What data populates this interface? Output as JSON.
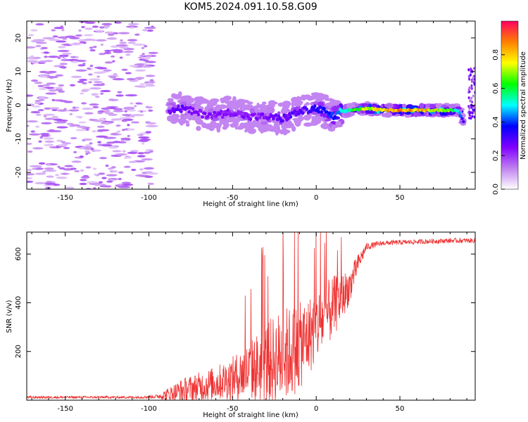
{
  "title": "KOM5.2024.091.10.58.G09",
  "chart_data": [
    {
      "type": "heatmap",
      "xlabel": "Height of straight line (km)",
      "ylabel": "Frequency (Hz)",
      "xlim": [
        -173,
        95
      ],
      "ylim": [
        -25,
        25
      ],
      "x_ticks": [
        -150,
        -100,
        -50,
        0,
        50
      ],
      "x_tick_labels": [
        "-150",
        "-100",
        "-50",
        "0",
        "50"
      ],
      "y_ticks": [
        20,
        10,
        0,
        -10,
        -20
      ],
      "y_tick_labels": [
        "20",
        "10",
        "0",
        "-10",
        "-20"
      ],
      "colorbar": {
        "label": "Normalized spectral amplitude",
        "range": [
          0,
          1
        ],
        "ticks": [
          0.0,
          0.2,
          0.4,
          0.6,
          0.8
        ],
        "tick_labels": [
          "0.0",
          "0.2",
          "0.4",
          "0.6",
          "0.8"
        ],
        "colormap": [
          "#ffffff",
          "#c080f0",
          "#8000ff",
          "#0000ff",
          "#00ffff",
          "#00ff00",
          "#ffff00",
          "#ff8000",
          "#ff0060"
        ]
      },
      "ridge": {
        "x": [
          -88,
          -80,
          -70,
          -60,
          -50,
          -40,
          -30,
          -20,
          -10,
          0,
          5,
          10,
          15,
          20,
          30,
          40,
          50,
          60,
          70,
          80,
          85,
          88
        ],
        "freq": [
          -1.5,
          -1.0,
          -2.5,
          -3.0,
          -2.0,
          -3.5,
          -3.5,
          -4.0,
          -2.0,
          -1.0,
          -2.0,
          -3.5,
          -2.0,
          -1.5,
          -1.0,
          -1.5,
          -1.5,
          -1.5,
          -1.5,
          -1.5,
          -1.5,
          -5.0
        ],
        "amplitude": [
          0.25,
          0.3,
          0.25,
          0.25,
          0.25,
          0.25,
          0.25,
          0.3,
          0.3,
          0.35,
          0.4,
          0.4,
          0.5,
          0.6,
          0.75,
          0.85,
          0.9,
          0.85,
          0.8,
          0.7,
          0.5,
          0.3
        ]
      },
      "noise_region_x": [
        -173,
        -97
      ]
    },
    {
      "type": "line",
      "xlabel": "Height of straight line (km)",
      "ylabel": "SNR (v/v)",
      "xlim": [
        -173,
        95
      ],
      "ylim": [
        0,
        690
      ],
      "x_ticks": [
        -150,
        -100,
        -50,
        0,
        50
      ],
      "x_tick_labels": [
        "-150",
        "-100",
        "-50",
        "0",
        "50"
      ],
      "y_ticks": [
        200,
        400,
        600
      ],
      "y_tick_labels": [
        "200",
        "400",
        "600"
      ],
      "color": "#ee3333",
      "envelope": {
        "x": [
          -173,
          -110,
          -95,
          -88,
          -80,
          -70,
          -60,
          -50,
          -40,
          -30,
          -20,
          -10,
          0,
          10,
          15,
          20,
          25,
          30,
          40,
          60,
          80,
          95
        ],
        "mean": [
          12,
          12,
          15,
          25,
          40,
          55,
          70,
          90,
          120,
          150,
          180,
          220,
          300,
          380,
          420,
          470,
          560,
          630,
          645,
          650,
          655,
          655
        ],
        "spread": [
          5,
          5,
          8,
          30,
          50,
          60,
          70,
          90,
          120,
          170,
          200,
          180,
          150,
          130,
          100,
          70,
          40,
          15,
          10,
          10,
          10,
          10
        ]
      }
    }
  ]
}
